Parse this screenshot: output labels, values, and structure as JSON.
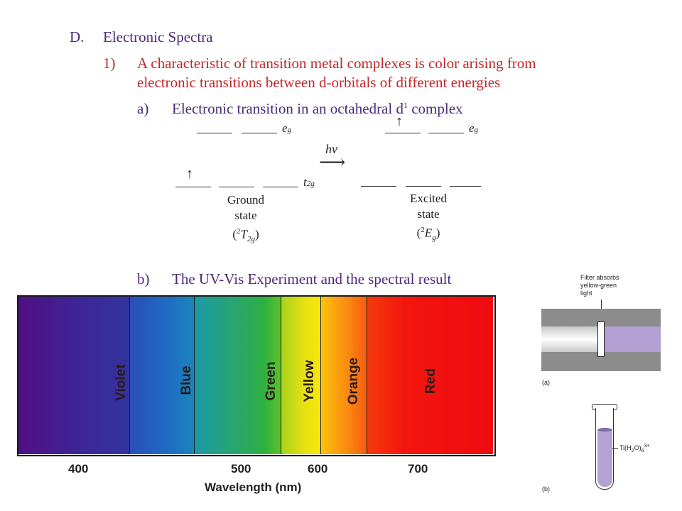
{
  "outline": {
    "d_marker": "D.",
    "d_title": "Electronic Spectra",
    "p1_marker": "1)",
    "p1_line1": "A characteristic of transition metal complexes is color arising from",
    "p1_line2": "electronic transitions between d-orbitals of different energies",
    "pa_marker": "a)",
    "pa_text": "Electronic transition in an octahedral d",
    "pa_sup": "1",
    "pa_tail": " complex",
    "pb_marker": "b)",
    "pb_text": "The UV-Vis Experiment and the spectral result"
  },
  "orbital_diagram": {
    "eg": "e",
    "eg_sub": "g",
    "t2g": "t",
    "t2g_sub": "2g",
    "hv": "hν",
    "arrow": "⟶",
    "electron": "↑",
    "ground_line1": "Ground",
    "ground_line2": "state",
    "ground_term_open": "(",
    "ground_term_sup": "2",
    "ground_term_T": "T",
    "ground_term_sub": "2g",
    "ground_term_close": ")",
    "excited_line1": "Excited",
    "excited_line2": "state",
    "excited_term_open": "(",
    "excited_term_sup": "2",
    "excited_term_E": "E",
    "excited_term_sub": "g",
    "excited_term_close": ")"
  },
  "spectrum": {
    "bands": [
      "Violet",
      "Blue",
      "Green",
      "Yellow",
      "Orange",
      "Red"
    ],
    "ticks": [
      "400",
      "500",
      "600",
      "700"
    ],
    "xlabel": "Wavelength (nm)"
  },
  "figure": {
    "filter_line1": "Filter absorbs",
    "filter_line2": "yellow-green",
    "filter_line3": "light",
    "label_a": "(a)",
    "label_b": "(b)",
    "tube_label": "Ti(H",
    "tube_sub1": "2",
    "tube_mid": "O)",
    "tube_sub2": "6",
    "tube_sup": "3+"
  }
}
